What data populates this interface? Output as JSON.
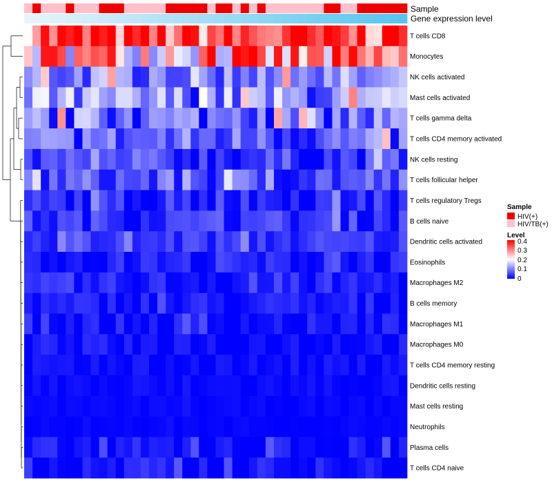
{
  "chart_data": {
    "type": "heatmap",
    "title": "",
    "annotation_labels": {
      "sample": "Sample",
      "gene_expression": "Gene expression level"
    },
    "rows": [
      "T cells CD8",
      "Monocytes",
      "NK cells activated",
      "Mast cells activated",
      "T cells gamma delta",
      "T cells CD4 memory activated",
      "NK cells resting",
      "T cells follicular helper",
      "T cells regulatory  Tregs",
      "B cells naive",
      "Dendritic cells activated",
      "Eosinophils",
      "Macrophages M2",
      "B cells memory",
      "Macrophages M1",
      "Macrophages M0",
      "T cells CD4 memory resting",
      "Dendritic cells resting",
      "Mast cells resting",
      "Neutrophils",
      "Plasma cells",
      "T cells CD4 naive"
    ],
    "n_columns": 46,
    "sample_groups": [
      "HIV(+)",
      "HIV/TB(+)"
    ],
    "sample_group_colors": [
      "#ee0000",
      "#ffc0cb"
    ],
    "column_sample": [
      1,
      0,
      1,
      1,
      1,
      0,
      1,
      1,
      1,
      0,
      0,
      0,
      1,
      1,
      1,
      1,
      1,
      0,
      0,
      0,
      0,
      0,
      1,
      0,
      0,
      1,
      0,
      1,
      0,
      1,
      1,
      1,
      1,
      1,
      1,
      1,
      0,
      0,
      1,
      1,
      0,
      0,
      0,
      0,
      0,
      0
    ],
    "gene_expression_gradient": [
      "#e8f4fb",
      "#56c5ee"
    ],
    "legend": {
      "sample_title": "Sample",
      "level_title": "Level",
      "level_ticks": [
        "0.4",
        "0.3",
        "0.2",
        "0.1",
        "0"
      ],
      "level_colors": [
        "#0000ff",
        "#ffffff",
        "#ff0000"
      ],
      "level_range": [
        0,
        0.4
      ]
    },
    "row_means": [
      0.33,
      0.26,
      0.1,
      0.1,
      0.08,
      0.07,
      0.04,
      0.06,
      0.03,
      0.04,
      0.04,
      0.02,
      0.02,
      0.015,
      0.012,
      0.012,
      0.008,
      0.006,
      0.004,
      0.003,
      0.01,
      0.01
    ],
    "row_spread": [
      0.08,
      0.1,
      0.05,
      0.06,
      0.06,
      0.05,
      0.035,
      0.04,
      0.025,
      0.025,
      0.02,
      0.02,
      0.02,
      0.02,
      0.018,
      0.015,
      0.01,
      0.01,
      0.004,
      0.003,
      0.02,
      0.02
    ],
    "seed": 7
  }
}
